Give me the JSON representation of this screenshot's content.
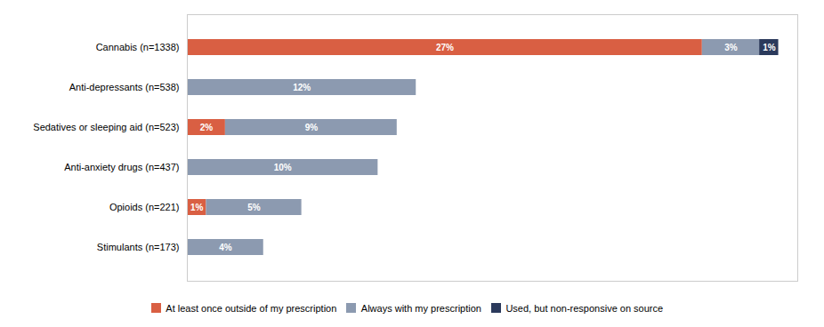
{
  "chart_data": {
    "type": "bar",
    "orientation": "horizontal",
    "stacked": true,
    "categories": [
      "Stimulants (n=173)",
      "Opioids (n=221)",
      "Anti-anxiety drugs (n=437)",
      "Sedatives or sleeping aid (n=523)",
      "Anti-depressants (n=538)",
      "Cannabis (n=1338)"
    ],
    "series": [
      {
        "name": "At least once outside of my prescription",
        "color": "#d95f43",
        "values": [
          0,
          1,
          0,
          2,
          0,
          27
        ],
        "value_labels": [
          null,
          "1%",
          null,
          "2%",
          null,
          "27%"
        ]
      },
      {
        "name": "Always with my prescription",
        "color": "#8c9ab0",
        "values": [
          4,
          5,
          10,
          9,
          12,
          3
        ],
        "value_labels": [
          "4%",
          "5%",
          "10%",
          "9%",
          "12%",
          "3%"
        ]
      },
      {
        "name": "Used, but non-responsive on source",
        "color": "#2b3a5c",
        "values": [
          0,
          0,
          0,
          0,
          0,
          1
        ],
        "value_labels": [
          null,
          null,
          null,
          null,
          null,
          "1%"
        ]
      }
    ],
    "xlim": [
      0,
      32
    ],
    "xticks": [],
    "tick_labels": "y",
    "data_labels": true,
    "grid": false,
    "legend": "bottom"
  }
}
